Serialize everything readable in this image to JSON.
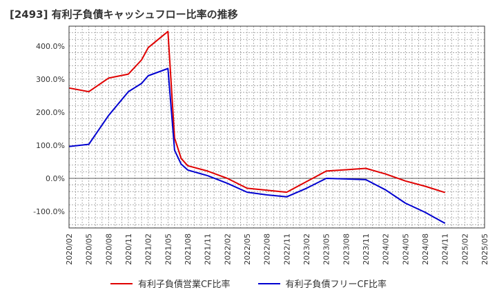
{
  "title": "[2493]  有利子負債キャッシュフロー比率の推移",
  "chart_data": {
    "type": "line",
    "x": [
      "2020/02",
      "2020/05",
      "2020/08",
      "2020/11",
      "2021/02",
      "2021/05",
      "2021/08",
      "2021/11",
      "2022/02",
      "2022/05",
      "2022/08",
      "2022/11",
      "2023/02",
      "2023/05",
      "2023/08",
      "2023/11",
      "2024/02",
      "2024/05",
      "2024/08",
      "2024/11",
      "2025/02",
      "2025/05"
    ],
    "ylim": [
      -150,
      460
    ],
    "yticks": [
      -100,
      0,
      100,
      200,
      300,
      400
    ],
    "ytick_labels": [
      "-100.0%",
      "0.0%",
      "100.0%",
      "200.0%",
      "300.0%",
      "400.0%"
    ],
    "grid": true,
    "legend_position": "bottom",
    "series": [
      {
        "name": "有利子負債営業CF比率",
        "color": "#e00000",
        "points": [
          [
            "2020/02",
            273
          ],
          [
            "2020/05",
            262
          ],
          [
            "2020/08",
            303
          ],
          [
            "2020/11",
            315
          ],
          [
            "2021/01",
            358
          ],
          [
            "2021/02",
            395
          ],
          [
            "2021/05",
            444
          ],
          [
            "2021/06",
            122
          ],
          [
            "2021/07",
            60
          ],
          [
            "2021/08",
            38
          ],
          [
            "2021/11",
            22
          ],
          [
            "2022/02",
            0
          ],
          [
            "2022/05",
            -30
          ],
          [
            "2022/08",
            -36
          ],
          [
            "2022/11",
            -42
          ],
          [
            "2023/02",
            -10
          ],
          [
            "2023/05",
            22
          ],
          [
            "2023/08",
            26
          ],
          [
            "2023/11",
            30
          ],
          [
            "2024/02",
            13
          ],
          [
            "2024/05",
            -8
          ],
          [
            "2024/08",
            -24
          ],
          [
            "2024/11",
            -43
          ]
        ]
      },
      {
        "name": "有利子負債フリーCF比率",
        "color": "#0000d0",
        "points": [
          [
            "2020/02",
            96
          ],
          [
            "2020/05",
            103
          ],
          [
            "2020/08",
            190
          ],
          [
            "2020/11",
            262
          ],
          [
            "2021/01",
            287
          ],
          [
            "2021/02",
            310
          ],
          [
            "2021/05",
            332
          ],
          [
            "2021/06",
            85
          ],
          [
            "2021/07",
            43
          ],
          [
            "2021/08",
            25
          ],
          [
            "2021/11",
            8
          ],
          [
            "2022/02",
            -15
          ],
          [
            "2022/05",
            -42
          ],
          [
            "2022/08",
            -50
          ],
          [
            "2022/11",
            -56
          ],
          [
            "2023/02",
            -30
          ],
          [
            "2023/05",
            0
          ],
          [
            "2023/08",
            -2
          ],
          [
            "2023/11",
            -4
          ],
          [
            "2024/02",
            -35
          ],
          [
            "2024/05",
            -75
          ],
          [
            "2024/08",
            -103
          ],
          [
            "2024/11",
            -136
          ]
        ]
      }
    ]
  }
}
